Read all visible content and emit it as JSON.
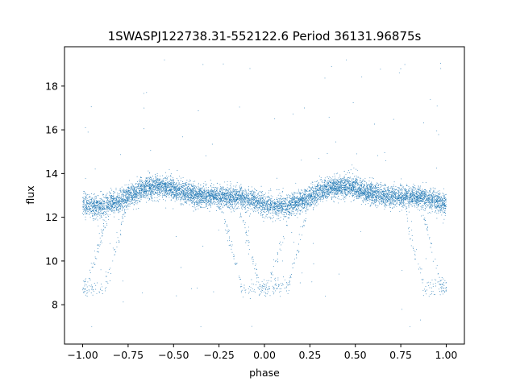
{
  "chart_data": {
    "type": "scatter",
    "title": "1SWASPJ122738.31-552122.6 Period 36131.96875s",
    "xlabel": "phase",
    "ylabel": "flux",
    "xlim": [
      -1.1,
      1.1
    ],
    "ylim": [
      6.2,
      19.8
    ],
    "xticks": [
      -1.0,
      -0.75,
      -0.5,
      -0.25,
      0.0,
      0.25,
      0.5,
      0.75,
      1.0
    ],
    "xtick_labels": [
      "−1.00",
      "−0.75",
      "−0.50",
      "−0.25",
      "0.00",
      "0.25",
      "0.50",
      "0.75",
      "1.00"
    ],
    "yticks": [
      8,
      10,
      12,
      14,
      16,
      18
    ],
    "ytick_labels": [
      "8",
      "10",
      "12",
      "14",
      "16",
      "18"
    ],
    "grid": false,
    "marker_color": "#1f77b4",
    "series": [
      {
        "light_curve": {
          "phase_range": [
            -1.0,
            1.0
          ],
          "period_in_phase": 1.0,
          "out_of_eclipse_flux_min": 12.6,
          "out_of_eclipse_flux_max": 13.3,
          "primary_eclipse_phases": [
            -1.0,
            0.0,
            1.0
          ],
          "primary_eclipse_min_flux": 8.8,
          "primary_eclipse_half_width": 0.2,
          "secondary_ghost_offset": 0.05,
          "scatter_sigma": 0.25,
          "outlier_flux_range": [
            7.0,
            19.2
          ]
        },
        "points": [
          {
            "x": -0.98,
            "y": 8.9
          },
          {
            "x": -0.95,
            "y": 8.7
          },
          {
            "x": -0.92,
            "y": 9.0
          },
          {
            "x": -0.9,
            "y": 9.6
          },
          {
            "x": -0.85,
            "y": 10.8
          },
          {
            "x": -0.8,
            "y": 11.9
          },
          {
            "x": -0.75,
            "y": 12.8
          },
          {
            "x": -0.6,
            "y": 13.1
          },
          {
            "x": -0.5,
            "y": 13.3
          },
          {
            "x": -0.4,
            "y": 13.2
          },
          {
            "x": -0.25,
            "y": 13.0
          },
          {
            "x": -0.15,
            "y": 12.4
          },
          {
            "x": -0.1,
            "y": 11.2
          },
          {
            "x": -0.05,
            "y": 9.8
          },
          {
            "x": 0.0,
            "y": 8.9
          },
          {
            "x": 0.05,
            "y": 8.8
          },
          {
            "x": 0.1,
            "y": 10.0
          },
          {
            "x": 0.15,
            "y": 11.3
          },
          {
            "x": 0.2,
            "y": 12.3
          },
          {
            "x": 0.3,
            "y": 13.0
          },
          {
            "x": 0.5,
            "y": 13.3
          },
          {
            "x": 0.7,
            "y": 13.2
          },
          {
            "x": 0.85,
            "y": 12.6
          },
          {
            "x": 0.9,
            "y": 11.2
          },
          {
            "x": 0.95,
            "y": 9.8
          },
          {
            "x": 1.0,
            "y": 8.8
          },
          {
            "x": -0.55,
            "y": 19.2
          },
          {
            "x": 0.45,
            "y": 19.2
          },
          {
            "x": 0.97,
            "y": 18.8
          },
          {
            "x": -0.08,
            "y": 18.8
          },
          {
            "x": 0.22,
            "y": 17.0
          },
          {
            "x": 0.95,
            "y": 17.1
          },
          {
            "x": -0.35,
            "y": 7.0
          },
          {
            "x": 0.8,
            "y": 7.0
          },
          {
            "x": -0.95,
            "y": 7.0
          }
        ]
      }
    ]
  }
}
